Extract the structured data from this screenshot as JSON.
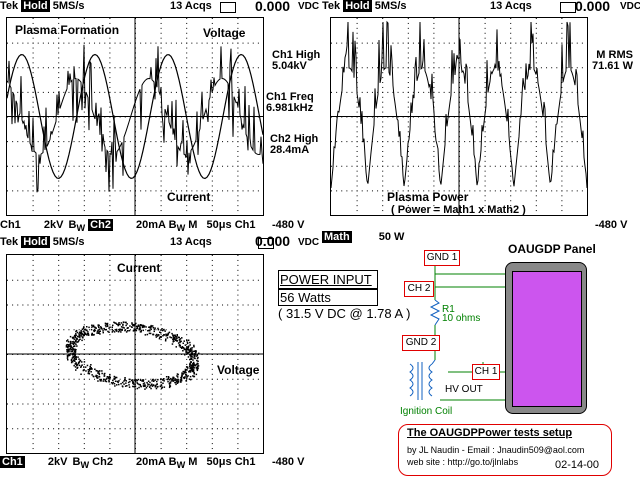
{
  "top_left": {
    "header": {
      "brand": "Tek",
      "mode": "Hold",
      "rate": "5MS/s",
      "acqs": "13 Acqs",
      "readout": "0.000",
      "unit": "VDC"
    },
    "labels": {
      "plasma": "Plasma Formation",
      "voltage": "Voltage",
      "current": "Current"
    },
    "footer": {
      "ch1": "Ch1",
      "v1": "2kV",
      "ch2": "Ch2",
      "v2": "20mA",
      "bw": "B",
      "w": "W",
      "m": "M",
      "time": "50μs",
      "trig": "Ch1",
      "level": "-480 V"
    }
  },
  "measurements": {
    "ch1_high_label": "Ch1 High",
    "ch1_high_value": "5.04kV",
    "ch1_freq_label": "Ch1 Freq",
    "ch1_freq_value": "6.981kHz",
    "ch2_high_label": "Ch2 High",
    "ch2_high_value": "28.4mA"
  },
  "top_right": {
    "header": {
      "brand": "Tek",
      "mode": "Hold",
      "rate": "5MS/s",
      "acqs": "13 Acqs",
      "readout": "0.000",
      "unit": "VDC"
    },
    "meas_label": "M RMS",
    "meas_value": "71.61 W",
    "label1": "Plasma Power",
    "label2": "( Power = Math1 x Math2 )",
    "footer": {
      "math": "Math",
      "scale": "50 W",
      "level": "-480 V"
    }
  },
  "bottom_left": {
    "header": {
      "brand": "Tek",
      "mode": "Hold",
      "rate": "5MS/s",
      "acqs": "13 Acqs",
      "readout": "0.000",
      "unit": "VDC"
    },
    "labels": {
      "current": "Current",
      "voltage": "Voltage"
    },
    "footer": {
      "ch1": "Ch1",
      "v1": "2kV",
      "ch2": "Ch2",
      "v2": "20mA",
      "bw": "B",
      "w": "W",
      "m": "M",
      "time": "50μs",
      "trig": "Ch1",
      "level": "-480 V"
    }
  },
  "power_input": {
    "title": "POWER INPUT",
    "watts": "56 Watts",
    "detail": "( 31.5 V  DC @ 1.78 A )"
  },
  "schematic": {
    "panel_title": "OAUGDP Panel",
    "gnd1": "GND 1",
    "ch2": "CH 2",
    "gnd2": "GND 2",
    "ch1": "CH 1",
    "r_name": "R1",
    "r_value": "10 ohms",
    "hv_out": "HV OUT",
    "ignition": "Ignition Coil",
    "colors": {
      "panel": "#cc55ee",
      "box": "#e00000",
      "wire": "#008000",
      "coil": "#1060c0"
    }
  },
  "credits": {
    "title": "The OAUGDPPower tests setup",
    "author": "by JL Naudin - Email : Jnaudin509@aol.com",
    "site": "web site :   http://go.to/jlnlabs",
    "date": "02-14-00"
  }
}
